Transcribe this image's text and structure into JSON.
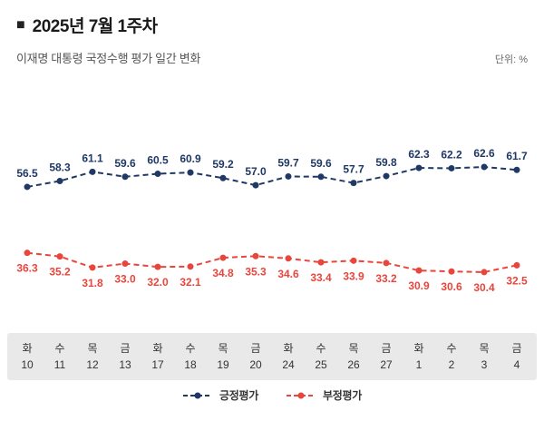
{
  "header": {
    "bullet": "■",
    "title": "2025년 7월 1주차"
  },
  "subtitle": "이재명 대통령 국정수행 평가 일간 변화",
  "unit_label": "단위: %",
  "colors": {
    "positive": "#1f3864",
    "negative": "#e8463c",
    "axis_strip": "#e9e9e9",
    "axis_text": "#333333"
  },
  "chart_data": {
    "type": "line",
    "title": "이재명 대통령 국정수행 평가 일간 변화",
    "unit": "%",
    "grid": false,
    "legend_position": "bottom",
    "ylim": [
      28,
      66
    ],
    "categories": [
      {
        "day": "화",
        "date": "10"
      },
      {
        "day": "수",
        "date": "11"
      },
      {
        "day": "목",
        "date": "12"
      },
      {
        "day": "금",
        "date": "13"
      },
      {
        "day": "화",
        "date": "17"
      },
      {
        "day": "수",
        "date": "18"
      },
      {
        "day": "목",
        "date": "19"
      },
      {
        "day": "금",
        "date": "20"
      },
      {
        "day": "화",
        "date": "24"
      },
      {
        "day": "수",
        "date": "25"
      },
      {
        "day": "목",
        "date": "26"
      },
      {
        "day": "금",
        "date": "27"
      },
      {
        "day": "화",
        "date": "1"
      },
      {
        "day": "수",
        "date": "2"
      },
      {
        "day": "목",
        "date": "3"
      },
      {
        "day": "금",
        "date": "4"
      }
    ],
    "series": [
      {
        "name": "긍정평가",
        "color": "#1f3864",
        "label_position": "above",
        "values": [
          56.5,
          58.3,
          61.1,
          59.6,
          60.5,
          60.9,
          59.2,
          57.0,
          59.7,
          59.6,
          57.7,
          59.8,
          62.3,
          62.2,
          62.6,
          61.7
        ]
      },
      {
        "name": "부정평가",
        "color": "#e8463c",
        "label_position": "below",
        "values": [
          36.3,
          35.2,
          31.8,
          33.0,
          32.0,
          32.1,
          34.8,
          35.3,
          34.6,
          33.4,
          33.9,
          33.2,
          30.9,
          30.6,
          30.4,
          32.5
        ]
      }
    ]
  }
}
